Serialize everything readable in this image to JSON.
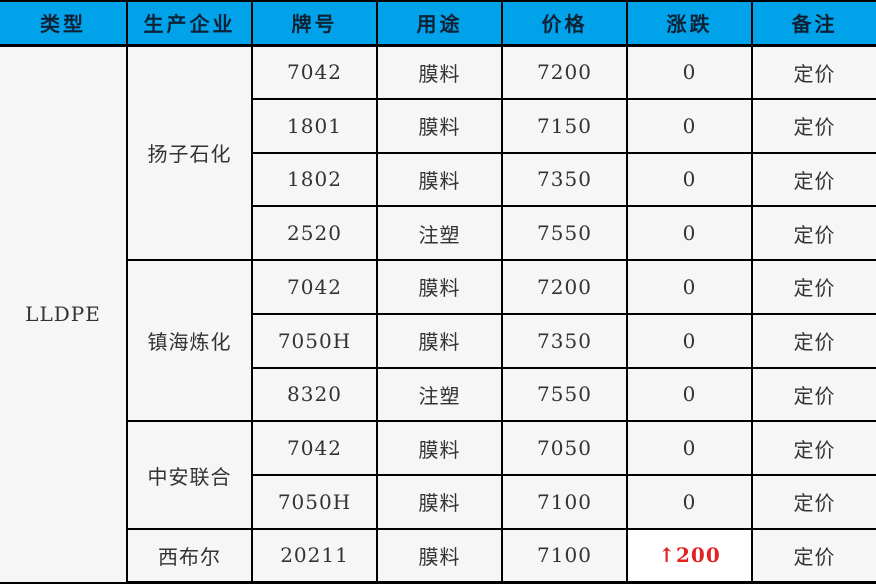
{
  "table": {
    "type_label": "LLDPE",
    "columns": [
      "类型",
      "生产企业",
      "牌号",
      "用途",
      "价格",
      "涨跌",
      "备注"
    ],
    "groups": [
      {
        "producer": "扬子石化",
        "rows": [
          {
            "brand": "7042",
            "use": "膜料",
            "price": "7200",
            "change": "0",
            "note": "定价"
          },
          {
            "brand": "1801",
            "use": "膜料",
            "price": "7150",
            "change": "0",
            "note": "定价"
          },
          {
            "brand": "1802",
            "use": "膜料",
            "price": "7350",
            "change": "0",
            "note": "定价"
          },
          {
            "brand": "2520",
            "use": "注塑",
            "price": "7550",
            "change": "0",
            "note": "定价"
          }
        ]
      },
      {
        "producer": "镇海炼化",
        "rows": [
          {
            "brand": "7042",
            "use": "膜料",
            "price": "7200",
            "change": "0",
            "note": "定价"
          },
          {
            "brand": "7050H",
            "use": "膜料",
            "price": "7350",
            "change": "0",
            "note": "定价"
          },
          {
            "brand": "8320",
            "use": "注塑",
            "price": "7550",
            "change": "0",
            "note": "定价"
          }
        ]
      },
      {
        "producer": "中安联合",
        "rows": [
          {
            "brand": "7042",
            "use": "膜料",
            "price": "7050",
            "change": "0",
            "note": "定价"
          },
          {
            "brand": "7050H",
            "use": "膜料",
            "price": "7100",
            "change": "0",
            "note": "定价"
          }
        ]
      },
      {
        "producer": "西布尔",
        "rows": [
          {
            "brand": "20211",
            "use": "膜料",
            "price": "7100",
            "change": "↑200",
            "change_up": true,
            "note": "定价"
          }
        ]
      }
    ],
    "colors": {
      "header_bg": "#00a2e9",
      "header_text": "#0d2235",
      "cell_bg": "#f6f6f6",
      "highlight_bg": "#ffffff",
      "up_red": "#e32222",
      "grid": "#000000"
    }
  },
  "chart_data": {
    "type": "table",
    "columns": [
      "类型",
      "生产企业",
      "牌号",
      "用途",
      "价格",
      "涨跌",
      "备注"
    ],
    "rows": [
      [
        "LLDPE",
        "扬子石化",
        "7042",
        "膜料",
        "7200",
        "0",
        "定价"
      ],
      [
        "LLDPE",
        "扬子石化",
        "1801",
        "膜料",
        "7150",
        "0",
        "定价"
      ],
      [
        "LLDPE",
        "扬子石化",
        "1802",
        "膜料",
        "7350",
        "0",
        "定价"
      ],
      [
        "LLDPE",
        "扬子石化",
        "2520",
        "注塑",
        "7550",
        "0",
        "定价"
      ],
      [
        "LLDPE",
        "镇海炼化",
        "7042",
        "膜料",
        "7200",
        "0",
        "定价"
      ],
      [
        "LLDPE",
        "镇海炼化",
        "7050H",
        "膜料",
        "7350",
        "0",
        "定价"
      ],
      [
        "LLDPE",
        "镇海炼化",
        "8320",
        "注塑",
        "7550",
        "0",
        "定价"
      ],
      [
        "LLDPE",
        "中安联合",
        "7042",
        "膜料",
        "7050",
        "0",
        "定价"
      ],
      [
        "LLDPE",
        "中安联合",
        "7050H",
        "膜料",
        "7100",
        "0",
        "定价"
      ],
      [
        "LLDPE",
        "西布尔",
        "20211",
        "膜料",
        "7100",
        "↑200",
        "定价"
      ]
    ],
    "merged_cells": {
      "type_column_rowspan": 10,
      "producer_rowspans": {
        "扬子石化": 4,
        "镇海炼化": 3,
        "中安联合": 2,
        "西布尔": 1
      }
    },
    "notes": "涨跌 cell ↑200 rendered bold red on white background; all other cells light gray"
  }
}
